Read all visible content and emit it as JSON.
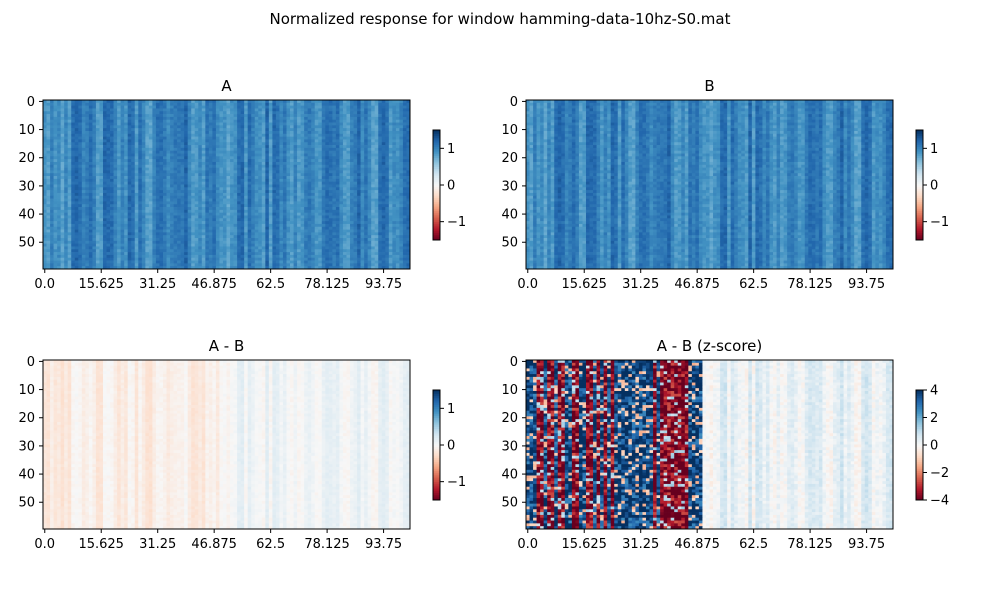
{
  "figure": {
    "title": "Normalized response for window hamming-data-10hz-S0.mat"
  },
  "chart_data": [
    {
      "type": "heatmap",
      "title": "A",
      "rows": 60,
      "cols": 104,
      "x_tick_labels": [
        "0.0",
        "15.625",
        "31.25",
        "46.875",
        "62.5",
        "78.125",
        "93.75"
      ],
      "x_tick_values": [
        0,
        15.625,
        31.25,
        46.875,
        62.5,
        78.125,
        93.75
      ],
      "y_tick_labels": [
        "0",
        "10",
        "20",
        "30",
        "40",
        "50"
      ],
      "y_tick_values": [
        0,
        10,
        20,
        30,
        40,
        50
      ],
      "colormap": "RdBu",
      "clim": [
        -1.5,
        1.5
      ],
      "colorbar_ticks": [
        -1,
        0,
        1
      ],
      "colorbar_tick_labels": [
        "−1",
        "0",
        "1"
      ],
      "value_profile": {
        "mean": 1.0,
        "variation": 0.2,
        "striped_columns": true
      }
    },
    {
      "type": "heatmap",
      "title": "B",
      "rows": 60,
      "cols": 104,
      "x_tick_labels": [
        "0.0",
        "15.625",
        "31.25",
        "46.875",
        "62.5",
        "78.125",
        "93.75"
      ],
      "x_tick_values": [
        0,
        15.625,
        31.25,
        46.875,
        62.5,
        78.125,
        93.75
      ],
      "y_tick_labels": [
        "0",
        "10",
        "20",
        "30",
        "40",
        "50"
      ],
      "y_tick_values": [
        0,
        10,
        20,
        30,
        40,
        50
      ],
      "colormap": "RdBu",
      "clim": [
        -1.5,
        1.5
      ],
      "colorbar_ticks": [
        -1,
        0,
        1
      ],
      "colorbar_tick_labels": [
        "−1",
        "0",
        "1"
      ],
      "value_profile": {
        "mean": 1.0,
        "variation": 0.2,
        "striped_columns": true
      }
    },
    {
      "type": "heatmap",
      "title": "A - B",
      "rows": 60,
      "cols": 104,
      "x_tick_labels": [
        "0.0",
        "15.625",
        "31.25",
        "46.875",
        "62.5",
        "78.125",
        "93.75"
      ],
      "x_tick_values": [
        0,
        15.625,
        31.25,
        46.875,
        62.5,
        78.125,
        93.75
      ],
      "y_tick_labels": [
        "0",
        "10",
        "20",
        "30",
        "40",
        "50"
      ],
      "y_tick_values": [
        0,
        10,
        20,
        30,
        40,
        50
      ],
      "colormap": "RdBu",
      "clim": [
        -1.5,
        1.5
      ],
      "colorbar_ticks": [
        -1,
        0,
        1
      ],
      "colorbar_tick_labels": [
        "−1",
        "0",
        "1"
      ],
      "value_profile": {
        "mean": 0.02,
        "variation": 0.12,
        "striped_columns": true
      }
    },
    {
      "type": "heatmap",
      "title": "A - B (z-score)",
      "rows": 60,
      "cols": 104,
      "x_tick_labels": [
        "0.0",
        "15.625",
        "31.25",
        "46.875",
        "62.5",
        "78.125",
        "93.75"
      ],
      "x_tick_values": [
        0,
        15.625,
        31.25,
        46.875,
        62.5,
        78.125,
        93.75
      ],
      "y_tick_labels": [
        "0",
        "10",
        "20",
        "30",
        "40",
        "50"
      ],
      "y_tick_values": [
        0,
        10,
        20,
        30,
        40,
        50
      ],
      "colormap": "RdBu",
      "clim": [
        -4,
        4
      ],
      "colorbar_ticks": [
        -4,
        -2,
        0,
        2,
        4
      ],
      "colorbar_tick_labels": [
        "−4",
        "−2",
        "0",
        "2",
        "4"
      ],
      "value_profile": {
        "mean": 0.3,
        "variation": 0.6,
        "striped_columns": true,
        "high_contrast_until_x": 48
      }
    }
  ]
}
